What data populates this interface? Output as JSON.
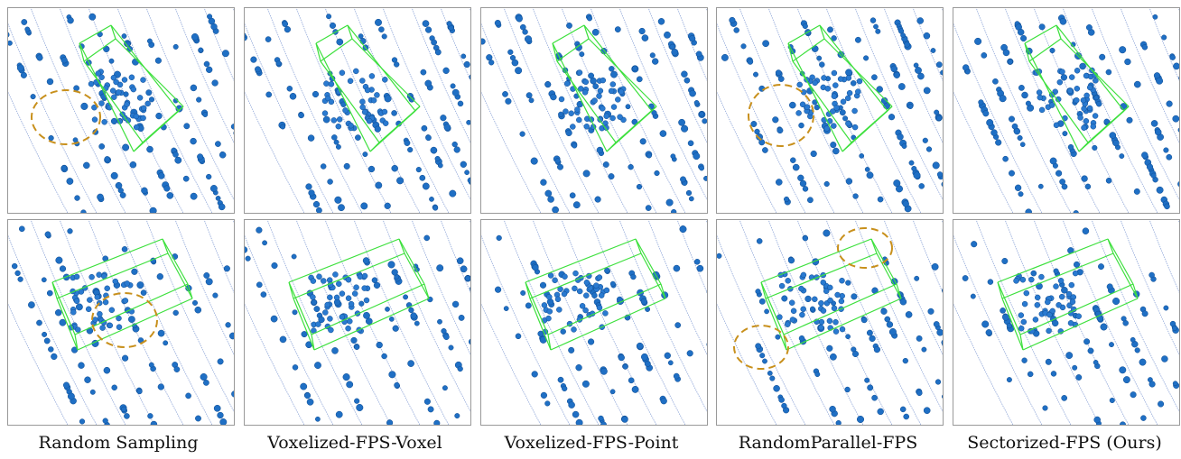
{
  "captions": [
    "Random Sampling",
    "Voxelized-FPS-Voxel",
    "Voxelized-FPS-Point",
    "RandomParallel-FPS",
    "Sectorized-FPS (Ours)"
  ]
}
